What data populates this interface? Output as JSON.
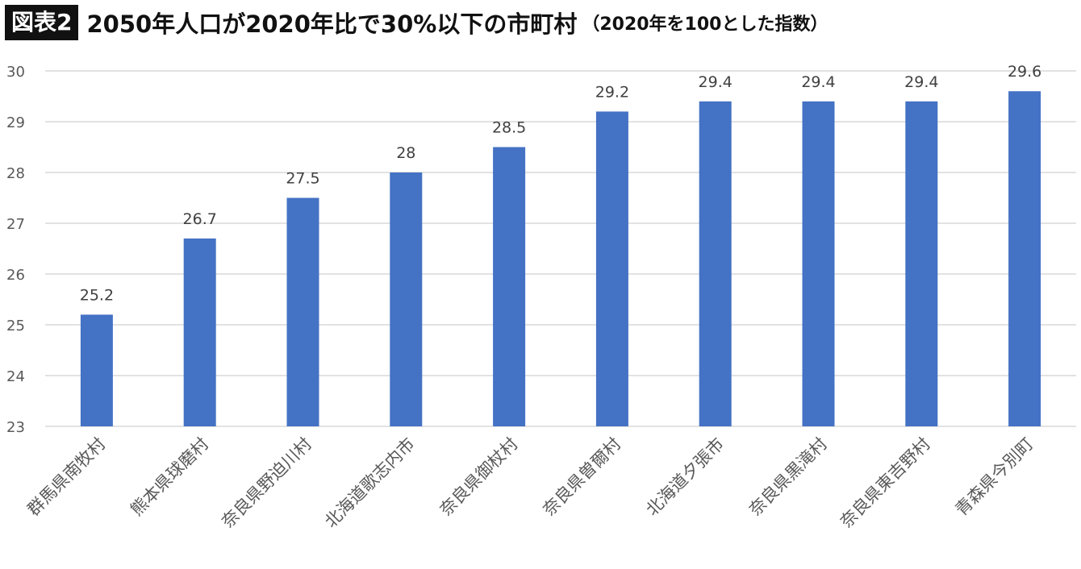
{
  "title": {
    "fig_label": "図表2",
    "main": "2050年人口が2020年比で30%以下の市町村",
    "sub": "（2020年を100とした指数）"
  },
  "colors": {
    "bar": "#4472C4",
    "grid": "#D9D9D9",
    "axis_text": "#595959"
  },
  "chart_data": {
    "type": "bar",
    "title": "2050年人口が2020年比で30%以下の市町村",
    "subtitle": "（2020年を100とした指数）",
    "categories": [
      "群馬県南牧村",
      "熊本県球磨村",
      "奈良県野迫川村",
      "北海道歌志内市",
      "奈良県御杖村",
      "奈良県曽爾村",
      "北海道夕張市",
      "奈良県黒滝村",
      "奈良県東吉野村",
      "青森県今別町"
    ],
    "values": [
      25.2,
      26.7,
      27.5,
      28,
      28.5,
      29.2,
      29.4,
      29.4,
      29.4,
      29.6
    ],
    "data_labels": [
      "25.2",
      "26.7",
      "27.5",
      "28",
      "28.5",
      "29.2",
      "29.4",
      "29.4",
      "29.4",
      "29.6"
    ],
    "yticks": [
      "23",
      "24",
      "25",
      "26",
      "27",
      "28",
      "29",
      "30"
    ],
    "ylim": [
      23,
      30
    ],
    "grid": true,
    "legend": "none"
  }
}
